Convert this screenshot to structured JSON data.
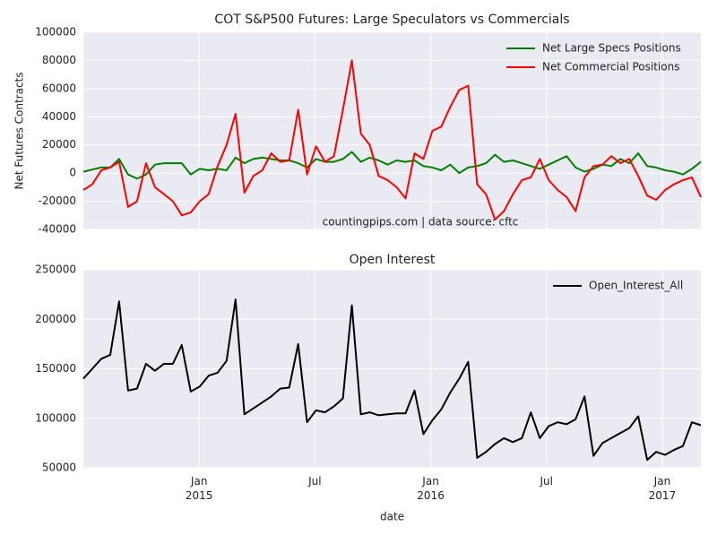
{
  "chart_data": [
    {
      "type": "line",
      "title": "COT S&P500 Futures: Large Speculators vs Commercials",
      "ylabel": "Net Futures Contracts",
      "annotation": "countingpips.com | data source: cftc",
      "xlim": [
        "2014-07",
        "2017-03"
      ],
      "ylim": [
        -40000,
        100000
      ],
      "yticks": [
        -40000,
        -20000,
        0,
        20000,
        40000,
        60000,
        80000,
        100000
      ],
      "grid": true,
      "legend": "upper right",
      "series": [
        {
          "name": "Net Large Specs Positions",
          "color": "#008000",
          "values": [
            1000,
            2500,
            4000,
            4000,
            10000,
            -1000,
            -4000,
            -1000,
            6000,
            7000,
            7000,
            7000,
            -1000,
            3000,
            2000,
            3000,
            2000,
            11000,
            7000,
            10000,
            11000,
            10000,
            9000,
            9000,
            7000,
            4000,
            10000,
            8000,
            8000,
            10000,
            15000,
            8000,
            11000,
            9000,
            6000,
            9000,
            8000,
            9000,
            5000,
            4000,
            2000,
            6000,
            0,
            4000,
            5000,
            7000,
            13000,
            8000,
            9000,
            7000,
            5000,
            3000,
            6000,
            9000,
            12000,
            4000,
            1000,
            3000,
            6000,
            5000,
            10000,
            7000,
            14000,
            5000,
            4000,
            2000,
            1000,
            -1000,
            3000,
            8000
          ]
        },
        {
          "name": "Net Commercial Positions",
          "color": "#ff0000",
          "values": [
            -12000,
            -8000,
            2000,
            4000,
            8000,
            -24000,
            -20000,
            7000,
            -10000,
            -15000,
            -20000,
            -30000,
            -28000,
            -20000,
            -15000,
            5000,
            20000,
            42000,
            -14000,
            -2000,
            2000,
            14000,
            8000,
            9000,
            45000,
            -1000,
            19000,
            8000,
            12000,
            45000,
            80000,
            28000,
            20000,
            -2000,
            -5000,
            -10000,
            -18000,
            14000,
            10000,
            30000,
            33000,
            47000,
            59000,
            62000,
            -8000,
            -15000,
            -33000,
            -27000,
            -15000,
            -5000,
            -3000,
            10000,
            -5000,
            -12000,
            -17000,
            -27000,
            -3000,
            5000,
            6000,
            12000,
            7000,
            10000,
            -2000,
            -16000,
            -19000,
            -12000,
            -8000,
            -5000,
            -3000,
            -17000
          ]
        }
      ]
    },
    {
      "type": "line",
      "title": "Open Interest",
      "xlabel": "date",
      "xlim": [
        "2014-07",
        "2017-03"
      ],
      "xticks": [
        {
          "value": "2015-01",
          "label": "Jan\n2015"
        },
        {
          "value": "2015-07",
          "label": "Jul"
        },
        {
          "value": "2016-01",
          "label": "Jan\n2016"
        },
        {
          "value": "2016-07",
          "label": "Jul"
        },
        {
          "value": "2017-01",
          "label": "Jan\n2017"
        }
      ],
      "ylim": [
        50000,
        250000
      ],
      "yticks": [
        50000,
        100000,
        150000,
        200000,
        250000
      ],
      "grid": true,
      "legend": "upper right",
      "series": [
        {
          "name": "Open_Interest_All",
          "color": "#000000",
          "values": [
            140000,
            150000,
            160000,
            164000,
            218000,
            128000,
            130000,
            155000,
            148000,
            155000,
            155000,
            174000,
            127000,
            132000,
            143000,
            146000,
            158000,
            220000,
            104000,
            110000,
            116000,
            122000,
            130000,
            131000,
            175000,
            96000,
            108000,
            106000,
            112000,
            120000,
            214000,
            104000,
            106000,
            103000,
            104000,
            105000,
            105000,
            128000,
            84000,
            98000,
            109000,
            126000,
            140000,
            157000,
            60000,
            66000,
            74000,
            80000,
            76000,
            80000,
            106000,
            80000,
            92000,
            96000,
            94000,
            99000,
            122000,
            62000,
            75000,
            80000,
            85000,
            90000,
            102000,
            58000,
            66000,
            63000,
            68000,
            72000,
            96000,
            93000
          ]
        }
      ]
    }
  ]
}
